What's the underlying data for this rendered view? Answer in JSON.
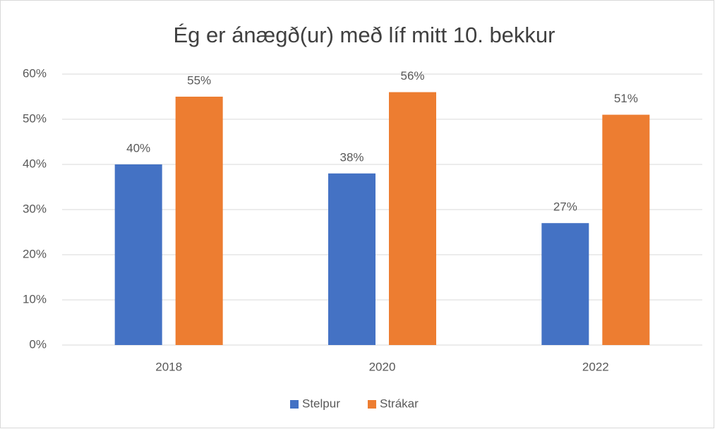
{
  "chart_data": {
    "type": "bar",
    "title": "Ég er ánægð(ur) með líf mitt 10. bekkur",
    "categories": [
      "2018",
      "2020",
      "2022"
    ],
    "series": [
      {
        "name": "Stelpur",
        "color": "#4472c4",
        "values": [
          40,
          38,
          27
        ],
        "value_labels": [
          "40%",
          "38%",
          "27%"
        ]
      },
      {
        "name": "Strákar",
        "color": "#ed7d31",
        "values": [
          55,
          56,
          51
        ],
        "value_labels": [
          "55%",
          "56%",
          "51%"
        ]
      }
    ],
    "ylim": [
      0,
      60
    ],
    "yticks": [
      {
        "value": 0,
        "label": "0%"
      },
      {
        "value": 10,
        "label": "10%"
      },
      {
        "value": 20,
        "label": "20%"
      },
      {
        "value": 30,
        "label": "30%"
      },
      {
        "value": 40,
        "label": "40%"
      },
      {
        "value": 50,
        "label": "50%"
      },
      {
        "value": 60,
        "label": "60%"
      }
    ],
    "grid": true,
    "legend": "bottom"
  }
}
